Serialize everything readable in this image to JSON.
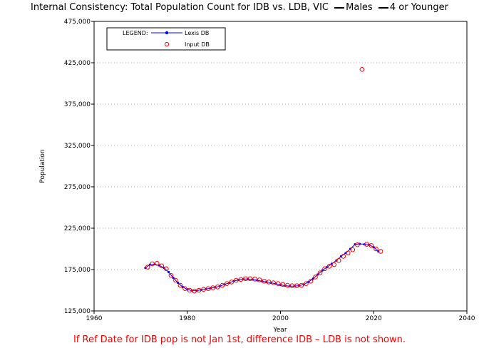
{
  "header": {
    "title": "Internal Consistency: Total Population Count for IDB vs. LDB, VIC",
    "sex_label": "Males",
    "age_label": "4 or Younger"
  },
  "footer": {
    "note": "If Ref Date for IDB pop is not Jan 1st, difference IDB – LDB is not shown."
  },
  "colors": {
    "ldb_line": "#0000ff",
    "ldb_marker": "#0000ff",
    "idb_marker": "#ff0000",
    "footer_text": "#ff0000",
    "grid": "#b0b0b0"
  },
  "chart_data": {
    "type": "line",
    "xlabel": "Year",
    "ylabel": "Population",
    "xlim": [
      1960,
      2040
    ],
    "ylim": [
      125000,
      475000
    ],
    "xticks": [
      "1960",
      "1980",
      "2000",
      "2020",
      "2040"
    ],
    "yticks": [
      "125,000",
      "175,000",
      "225,000",
      "275,000",
      "325,000",
      "375,000",
      "425,000",
      "475,000"
    ],
    "grid": "dotted horizontal",
    "legend": {
      "title": "LEGEND:",
      "placement": "top-left",
      "entries": [
        "Lexis DB",
        "Input DB"
      ]
    },
    "series": [
      {
        "name": "Lexis DB",
        "style": "line with filled markers",
        "x": [
          1971,
          1972,
          1973,
          1974,
          1975,
          1976,
          1977,
          1978,
          1979,
          1980,
          1981,
          1982,
          1983,
          1984,
          1985,
          1986,
          1987,
          1988,
          1989,
          1990,
          1991,
          1992,
          1993,
          1994,
          1995,
          1996,
          1997,
          1998,
          1999,
          2000,
          2001,
          2002,
          2003,
          2004,
          2005,
          2006,
          2007,
          2008,
          2009,
          2010,
          2011,
          2012,
          2013,
          2014,
          2015,
          2016,
          2017,
          2018,
          2019,
          2020,
          2021
        ],
        "y": [
          177000,
          181000,
          181500,
          180000,
          177000,
          172000,
          165000,
          159000,
          154000,
          151000,
          149500,
          149500,
          150500,
          151500,
          152500,
          153500,
          155000,
          157000,
          159000,
          161000,
          162500,
          163500,
          163500,
          163000,
          162000,
          161000,
          160000,
          159000,
          158000,
          156500,
          155500,
          155000,
          155000,
          155500,
          157000,
          160000,
          164000,
          169000,
          174000,
          178000,
          182000,
          186000,
          191000,
          195000,
          200000,
          205500,
          206000,
          205500,
          205000,
          202000,
          197000
        ]
      },
      {
        "name": "Input DB",
        "style": "open circle markers",
        "x": [
          1971.5,
          1972.5,
          1973.5,
          1974.5,
          1975.5,
          1976.5,
          1977.5,
          1978.5,
          1979.5,
          1980.5,
          1981.5,
          1982.5,
          1983.5,
          1984.5,
          1985.5,
          1986.5,
          1987.5,
          1988.5,
          1989.5,
          1990.5,
          1991.5,
          1992.5,
          1993.5,
          1994.5,
          1995.5,
          1996.5,
          1997.5,
          1998.5,
          1999.5,
          2000.5,
          2001.5,
          2002.5,
          2003.5,
          2004.5,
          2005.5,
          2006.5,
          2007.5,
          2008.5,
          2009.5,
          2010.5,
          2011.5,
          2012.5,
          2013.5,
          2014.5,
          2015.5,
          2016.5,
          2017.5,
          2018.5,
          2019.5,
          2020.5,
          2021.5
        ],
        "y": [
          178000,
          182000,
          182500,
          179500,
          176000,
          168000,
          162000,
          156000,
          152000,
          150000,
          149000,
          150000,
          151000,
          152000,
          153000,
          154000,
          156000,
          158000,
          160000,
          162000,
          163000,
          164000,
          164000,
          163500,
          162500,
          161000,
          160000,
          159000,
          158000,
          157000,
          156000,
          155500,
          155500,
          156000,
          158000,
          161000,
          166000,
          171000,
          176000,
          179000,
          181000,
          186000,
          191000,
          195000,
          199000,
          205000,
          417000,
          205500,
          204000,
          200000,
          197000
        ]
      }
    ]
  }
}
